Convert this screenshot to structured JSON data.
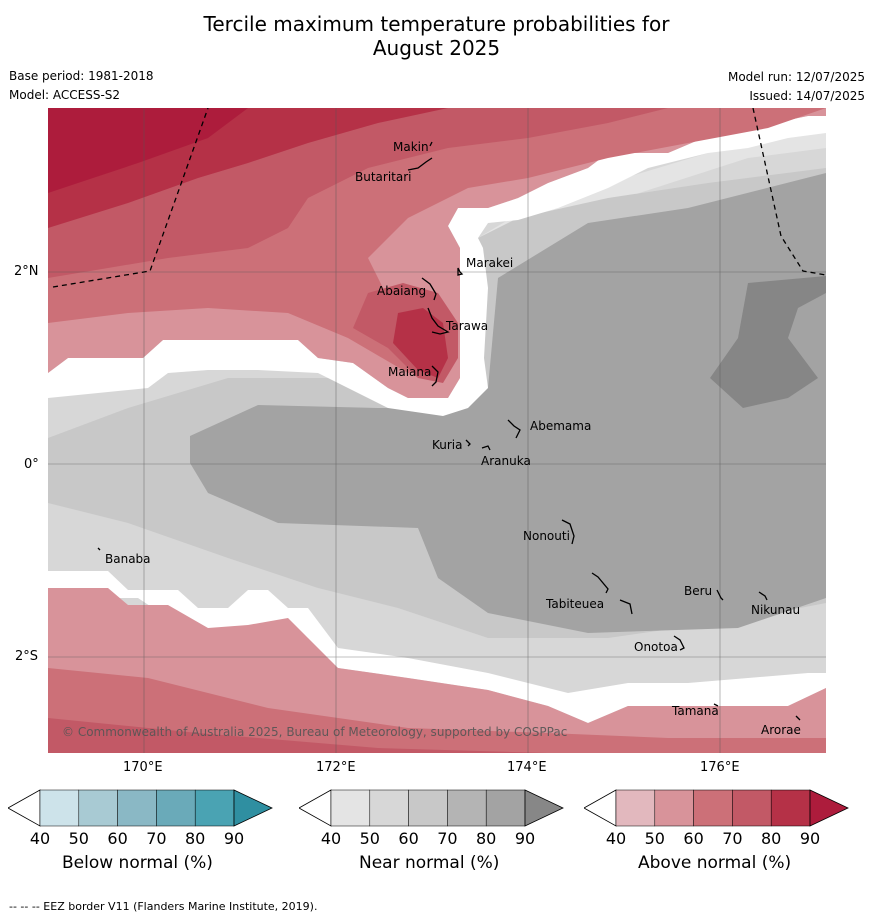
{
  "title_line1": "Tercile maximum temperature probabilities for",
  "title_line2": "August 2025",
  "base_period": "Base period: 1981-2018",
  "model": "Model: ACCESS-S2",
  "model_run": "Model run: 12/07/2025",
  "issued": "Issued: 14/07/2025",
  "copyright": "© Commonwealth of Australia 2025, Bureau of Meteorology, supported by COSPPac",
  "footnote": "-- -- -- EEZ border V11 (Flanders Marine Institute, 2019).",
  "map": {
    "lat_ticks": [
      "2°N",
      "0°",
      "2°S"
    ],
    "lon_ticks": [
      "170°E",
      "172°E",
      "174°E",
      "176°E"
    ],
    "places": [
      "Makin",
      "Butaritari",
      "Marakei",
      "Abaiang",
      "Tarawa",
      "Maiana",
      "Abemama",
      "Kuria",
      "Aranuka",
      "Banaba",
      "Nonouti",
      "Beru",
      "Tabiteuea",
      "Nikunau",
      "Onotoa",
      "Tamana",
      "Arorae"
    ]
  },
  "colorbars": [
    {
      "label": "Below normal (%)",
      "ticks": [
        "40",
        "50",
        "60",
        "70",
        "80",
        "90"
      ],
      "colors": [
        "#ffffff",
        "#cde3ea",
        "#a8cad3",
        "#8ab8c5",
        "#6aaab9",
        "#4aa3b3",
        "#2f8fa1"
      ]
    },
    {
      "label": "Near normal (%)",
      "ticks": [
        "40",
        "50",
        "60",
        "70",
        "80",
        "90"
      ],
      "colors": [
        "#ffffff",
        "#e4e4e4",
        "#d7d7d7",
        "#c8c8c8",
        "#b4b4b4",
        "#a3a3a3",
        "#878787"
      ]
    },
    {
      "label": "Above normal (%)",
      "ticks": [
        "40",
        "50",
        "60",
        "70",
        "80",
        "90"
      ],
      "colors": [
        "#ffffff",
        "#e2b8be",
        "#d8939a",
        "#cc7078",
        "#c25966",
        "#b53147",
        "#ad1c3c"
      ]
    }
  ]
}
